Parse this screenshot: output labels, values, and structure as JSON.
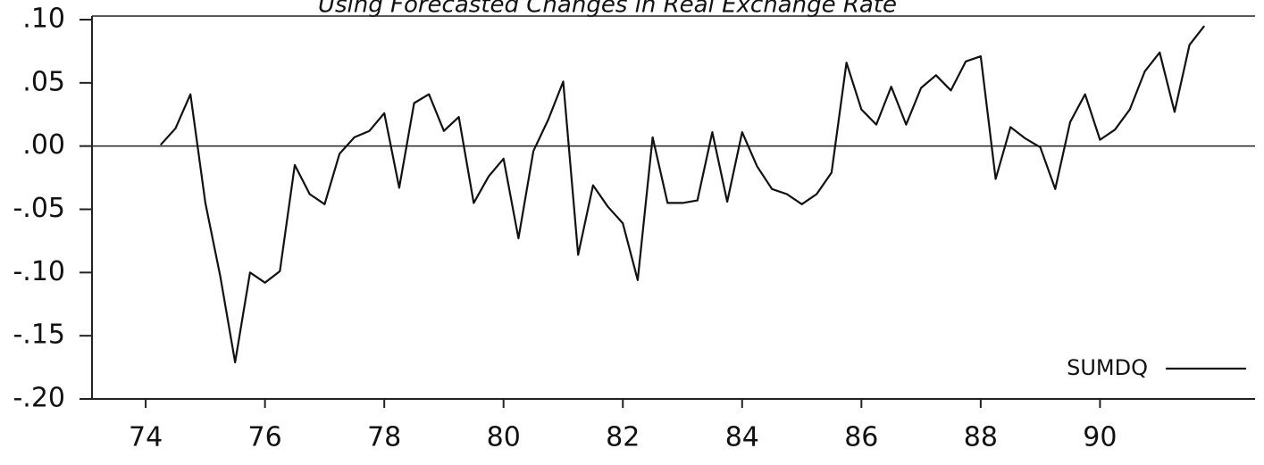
{
  "chart_data": {
    "type": "line",
    "title": "Using Forecasted Changes in Real Exchange Rate",
    "x": [
      74.25,
      74.5,
      74.75,
      75,
      75.25,
      75.5,
      75.75,
      76,
      76.25,
      76.5,
      76.75,
      77,
      77.25,
      77.5,
      77.75,
      78,
      78.25,
      78.5,
      78.75,
      79,
      79.25,
      79.5,
      79.75,
      80,
      80.25,
      80.5,
      80.75,
      81,
      81.25,
      81.5,
      81.75,
      82,
      82.25,
      82.5,
      82.75,
      83,
      83.25,
      83.5,
      83.75,
      84,
      84.25,
      84.5,
      84.75,
      85,
      85.25,
      85.5,
      85.75,
      86,
      86.25,
      86.5,
      86.75,
      87,
      87.25,
      87.5,
      87.75,
      88,
      88.25,
      88.5,
      88.75,
      89,
      89.25,
      89.5,
      89.75,
      90,
      90.25,
      90.5,
      90.75,
      91,
      91.25,
      91.5,
      91.75
    ],
    "series": [
      {
        "name": "SUMDQ",
        "color": "#111111",
        "values": [
          0.001,
          0.014,
          0.041,
          -0.045,
          -0.103,
          -0.171,
          -0.1,
          -0.108,
          -0.099,
          -0.015,
          -0.038,
          -0.046,
          -0.006,
          0.007,
          0.012,
          0.026,
          -0.033,
          0.034,
          0.041,
          0.012,
          0.023,
          -0.045,
          -0.024,
          -0.01,
          -0.073,
          -0.004,
          0.021,
          0.051,
          -0.086,
          -0.031,
          -0.048,
          -0.061,
          -0.106,
          0.007,
          -0.045,
          -0.045,
          -0.043,
          0.011,
          -0.044,
          0.011,
          -0.016,
          -0.034,
          -0.038,
          -0.046,
          -0.038,
          -0.021,
          0.066,
          0.029,
          0.017,
          0.047,
          0.017,
          0.046,
          0.056,
          0.044,
          0.067,
          0.071,
          -0.026,
          0.015,
          0.006,
          -0.001,
          -0.034,
          0.019,
          0.041,
          0.005,
          0.013,
          0.029,
          0.059,
          0.074,
          0.027,
          0.08,
          0.095
        ]
      }
    ],
    "xlim": [
      73.1,
      92.6
    ],
    "xticks": [
      74,
      76,
      78,
      80,
      82,
      84,
      86,
      88,
      90
    ],
    "ylim": [
      -0.2,
      0.1
    ],
    "yticks": [
      {
        "value": 0.1,
        "label": ".10"
      },
      {
        "value": 0.05,
        "label": ".05"
      },
      {
        "value": 0,
        "label": ".00"
      },
      {
        "value": -0.05,
        "label": "-.05"
      },
      {
        "value": -0.1,
        "label": "-.10"
      },
      {
        "value": -0.15,
        "label": "-.15"
      },
      {
        "value": -0.2,
        "label": "-.20"
      }
    ],
    "reference_line": 0,
    "legend": "lower right"
  }
}
